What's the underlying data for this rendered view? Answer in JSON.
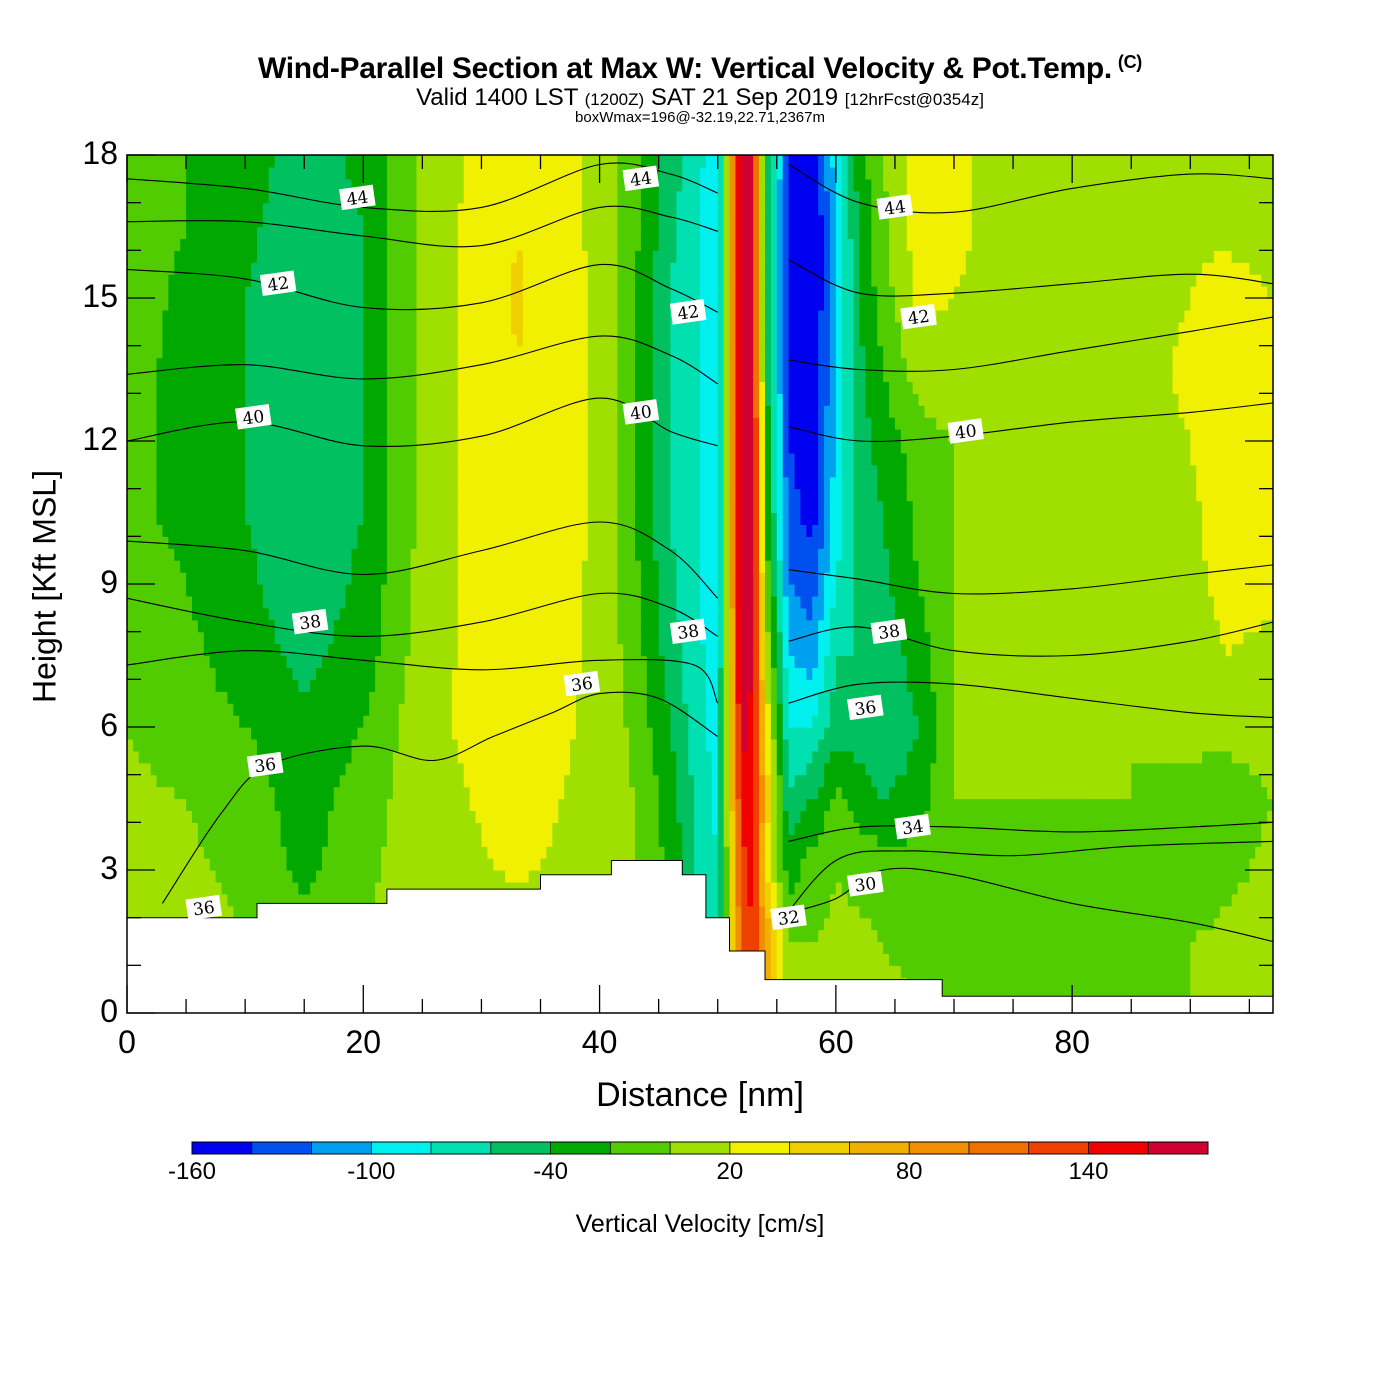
{
  "title": {
    "main": "Wind-Parallel Section at Max W: Vertical Velocity & Pot.Temp.",
    "copyright": "(C)",
    "valid_a": "Valid 1400 LST",
    "valid_utc": "(1200Z)",
    "valid_b": "SAT 21 Sep 2019",
    "forecast": "[12hrFcst@0354z]",
    "box_info": "boxWmax=196@-32.19,22.71,2367m"
  },
  "chart_data": {
    "type": "heatmap",
    "xlabel": "Distance [nm]",
    "ylabel": "Height [Kft MSL]",
    "xlim": [
      0,
      97
    ],
    "ylim": [
      0,
      18
    ],
    "xticks": [
      0,
      20,
      40,
      60,
      80
    ],
    "yticks": [
      0,
      3,
      6,
      9,
      12,
      15,
      18
    ],
    "colorbar": {
      "title": "Vertical Velocity [cm/s]",
      "levels": [
        -160,
        -140,
        -120,
        -100,
        -80,
        -60,
        -40,
        -20,
        0,
        20,
        40,
        60,
        80,
        100,
        120,
        140,
        160,
        180
      ],
      "colors": [
        "#0000f0",
        "#0050f0",
        "#00a0f0",
        "#00f0f0",
        "#00e0b0",
        "#00c060",
        "#00a800",
        "#50cc00",
        "#a0e000",
        "#f0f000",
        "#f0d000",
        "#f0b000",
        "#f09000",
        "#f07000",
        "#f04000",
        "#f00000",
        "#d00030"
      ],
      "tick_labels": [
        "-160",
        "-100",
        "-40",
        "20",
        "80",
        "140"
      ],
      "tick_values": [
        -160,
        -100,
        -40,
        20,
        80,
        140
      ]
    },
    "w_field": {
      "x": [
        0,
        5,
        10,
        15,
        20,
        25,
        30,
        33,
        36,
        40,
        43,
        46,
        48,
        50,
        52,
        53,
        54,
        56,
        58,
        60,
        62,
        64,
        67,
        70,
        75,
        80,
        85,
        90,
        93,
        97
      ],
      "z": [
        0,
        1.5,
        3,
        4.5,
        6,
        7.5,
        9,
        10.5,
        12,
        13.5,
        15,
        16.5,
        18
      ],
      "values": [
        [
          8,
          8,
          6,
          4,
          10,
          12,
          12,
          12,
          10,
          8,
          0,
          -20,
          -40,
          -70,
          100,
          120,
          60,
          10,
          8,
          6,
          6,
          4,
          2,
          0,
          0,
          -5,
          -5,
          0,
          5,
          8
        ],
        [
          8,
          8,
          0,
          -10,
          0,
          10,
          12,
          12,
          10,
          8,
          4,
          -20,
          -50,
          -80,
          120,
          140,
          80,
          0,
          0,
          4,
          4,
          0,
          -5,
          -10,
          -10,
          -5,
          -5,
          0,
          5,
          8
        ],
        [
          6,
          4,
          -5,
          -25,
          -5,
          12,
          18,
          22,
          18,
          6,
          2,
          -25,
          -60,
          -80,
          130,
          150,
          40,
          -30,
          -10,
          0,
          -5,
          -10,
          -10,
          -5,
          -5,
          -5,
          -10,
          -15,
          -5,
          5
        ],
        [
          4,
          0,
          -10,
          -30,
          -10,
          12,
          22,
          28,
          22,
          12,
          0,
          -30,
          -60,
          -85,
          150,
          160,
          60,
          -60,
          -40,
          -15,
          -30,
          -40,
          -30,
          0,
          0,
          0,
          0,
          -5,
          -10,
          0
        ],
        [
          0,
          -10,
          -20,
          -35,
          -20,
          14,
          26,
          30,
          26,
          14,
          -5,
          -40,
          -70,
          -90,
          170,
          150,
          40,
          -80,
          -80,
          -50,
          -50,
          -60,
          -40,
          0,
          0,
          0,
          0,
          5,
          5,
          10
        ],
        [
          -5,
          -15,
          -30,
          -45,
          -30,
          10,
          28,
          32,
          28,
          15,
          -10,
          -50,
          -70,
          -95,
          180,
          160,
          20,
          -100,
          -110,
          -60,
          -60,
          -55,
          -30,
          0,
          0,
          0,
          5,
          10,
          20,
          15
        ],
        [
          -10,
          -20,
          -35,
          -55,
          -35,
          8,
          28,
          34,
          28,
          16,
          -15,
          -55,
          -75,
          -100,
          190,
          170,
          0,
          -120,
          -130,
          -80,
          -55,
          -45,
          -20,
          0,
          0,
          0,
          5,
          15,
          25,
          25
        ],
        [
          -15,
          -25,
          -40,
          -55,
          -40,
          5,
          28,
          36,
          30,
          16,
          -20,
          -60,
          -75,
          -100,
          195,
          175,
          -20,
          -130,
          -150,
          -90,
          -50,
          -40,
          -15,
          0,
          0,
          0,
          8,
          15,
          30,
          30
        ],
        [
          -15,
          -25,
          -40,
          -55,
          -40,
          5,
          30,
          38,
          32,
          16,
          -20,
          -60,
          -75,
          -100,
          190,
          170,
          -20,
          -140,
          -155,
          -95,
          -50,
          -30,
          -10,
          0,
          0,
          5,
          10,
          20,
          35,
          35
        ],
        [
          -15,
          -25,
          -40,
          -60,
          -40,
          5,
          30,
          40,
          34,
          15,
          -20,
          -60,
          -75,
          -100,
          190,
          165,
          -30,
          -145,
          -160,
          -100,
          -45,
          -20,
          10,
          15,
          10,
          5,
          10,
          25,
          35,
          30
        ],
        [
          -10,
          -25,
          -40,
          -55,
          -40,
          5,
          30,
          42,
          34,
          15,
          -20,
          -60,
          -75,
          -100,
          190,
          160,
          -30,
          -145,
          -165,
          -100,
          -40,
          -10,
          25,
          20,
          10,
          5,
          10,
          20,
          30,
          20
        ],
        [
          -10,
          -20,
          -35,
          -55,
          -40,
          5,
          30,
          40,
          32,
          14,
          -15,
          -55,
          -75,
          -100,
          190,
          160,
          -30,
          -145,
          -165,
          -100,
          -35,
          -5,
          30,
          25,
          10,
          5,
          10,
          15,
          15,
          10
        ],
        [
          -10,
          -20,
          -30,
          -50,
          -35,
          5,
          25,
          35,
          30,
          12,
          -10,
          -50,
          -70,
          -95,
          185,
          155,
          -30,
          -140,
          -160,
          -90,
          -30,
          0,
          30,
          25,
          10,
          5,
          10,
          10,
          10,
          5
        ]
      ]
    },
    "isentropes": [
      {
        "label": "36",
        "points": [
          [
            3,
            2.3
          ],
          [
            8,
            4.2
          ],
          [
            12,
            5.2
          ],
          [
            20,
            5.6
          ],
          [
            26,
            5.3
          ],
          [
            31,
            5.8
          ],
          [
            36,
            6.3
          ],
          [
            40,
            6.7
          ],
          [
            45,
            6.6
          ],
          [
            50,
            5.8
          ]
        ]
      },
      {
        "label": "36",
        "points": [
          [
            0,
            7.3
          ],
          [
            10,
            7.6
          ],
          [
            20,
            7.4
          ],
          [
            30,
            7.2
          ],
          [
            40,
            7.4
          ],
          [
            48,
            7.3
          ],
          [
            50,
            6.5
          ]
        ]
      },
      {
        "label": "38",
        "points": [
          [
            0,
            8.7
          ],
          [
            10,
            8.2
          ],
          [
            20,
            7.9
          ],
          [
            30,
            8.2
          ],
          [
            40,
            8.8
          ],
          [
            46,
            8.5
          ],
          [
            50,
            7.9
          ]
        ]
      },
      {
        "label": "38",
        "points": [
          [
            0,
            9.9
          ],
          [
            10,
            9.7
          ],
          [
            20,
            9.2
          ],
          [
            30,
            9.7
          ],
          [
            40,
            10.3
          ],
          [
            46,
            9.7
          ],
          [
            50,
            8.7
          ]
        ]
      },
      {
        "label": "40",
        "points": [
          [
            0,
            12.0
          ],
          [
            10,
            12.4
          ],
          [
            20,
            11.9
          ],
          [
            30,
            12.1
          ],
          [
            40,
            12.9
          ],
          [
            46,
            12.2
          ],
          [
            50,
            11.9
          ]
        ]
      },
      {
        "label": "40",
        "points": [
          [
            0,
            13.4
          ],
          [
            10,
            13.6
          ],
          [
            20,
            13.3
          ],
          [
            30,
            13.6
          ],
          [
            40,
            14.2
          ],
          [
            46,
            13.8
          ],
          [
            50,
            13.2
          ]
        ]
      },
      {
        "label": "42",
        "points": [
          [
            0,
            15.6
          ],
          [
            10,
            15.4
          ],
          [
            20,
            14.8
          ],
          [
            30,
            14.9
          ],
          [
            40,
            15.7
          ],
          [
            46,
            15.2
          ],
          [
            50,
            14.7
          ]
        ]
      },
      {
        "label": "42",
        "points": [
          [
            0,
            16.6
          ],
          [
            10,
            16.6
          ],
          [
            20,
            16.3
          ],
          [
            30,
            16.1
          ],
          [
            40,
            16.9
          ],
          [
            46,
            16.7
          ],
          [
            50,
            16.4
          ]
        ]
      },
      {
        "label": "44",
        "points": [
          [
            0,
            17.5
          ],
          [
            10,
            17.3
          ],
          [
            20,
            16.9
          ],
          [
            30,
            16.9
          ],
          [
            40,
            17.8
          ],
          [
            46,
            17.6
          ],
          [
            50,
            17.2
          ]
        ]
      }
    ],
    "isentropes_right": [
      {
        "label": "30",
        "points": [
          [
            56,
            2.1
          ],
          [
            60,
            2.4
          ],
          [
            64,
            3.0
          ],
          [
            70,
            2.9
          ],
          [
            80,
            2.3
          ],
          [
            90,
            1.9
          ],
          [
            97,
            1.5
          ]
        ]
      },
      {
        "label": "32",
        "points": [
          [
            55,
            1.8
          ],
          [
            60,
            3.2
          ],
          [
            66,
            3.4
          ],
          [
            75,
            3.3
          ],
          [
            85,
            3.5
          ],
          [
            97,
            3.6
          ]
        ]
      },
      {
        "label": "34",
        "points": [
          [
            56,
            3.6
          ],
          [
            62,
            3.9
          ],
          [
            70,
            3.9
          ],
          [
            80,
            3.8
          ],
          [
            90,
            3.9
          ],
          [
            97,
            4.0
          ]
        ]
      },
      {
        "label": "36",
        "points": [
          [
            56,
            6.5
          ],
          [
            62,
            6.9
          ],
          [
            70,
            6.9
          ],
          [
            80,
            6.6
          ],
          [
            90,
            6.3
          ],
          [
            97,
            6.2
          ]
        ]
      },
      {
        "label": "38",
        "points": [
          [
            56,
            7.8
          ],
          [
            62,
            8.1
          ],
          [
            70,
            7.6
          ],
          [
            80,
            7.5
          ],
          [
            90,
            7.8
          ],
          [
            97,
            8.2
          ]
        ]
      },
      {
        "label": "38",
        "points": [
          [
            56,
            9.3
          ],
          [
            62,
            9.1
          ],
          [
            70,
            8.8
          ],
          [
            80,
            8.9
          ],
          [
            90,
            9.2
          ],
          [
            97,
            9.4
          ]
        ]
      },
      {
        "label": "40",
        "points": [
          [
            56,
            12.3
          ],
          [
            62,
            12.0
          ],
          [
            70,
            12.1
          ],
          [
            80,
            12.4
          ],
          [
            90,
            12.6
          ],
          [
            97,
            12.8
          ]
        ]
      },
      {
        "label": "40",
        "points": [
          [
            56,
            13.7
          ],
          [
            62,
            13.5
          ],
          [
            70,
            13.5
          ],
          [
            80,
            13.9
          ],
          [
            90,
            14.3
          ],
          [
            97,
            14.6
          ]
        ]
      },
      {
        "label": "42",
        "points": [
          [
            56,
            15.8
          ],
          [
            62,
            15.1
          ],
          [
            70,
            15.1
          ],
          [
            80,
            15.3
          ],
          [
            90,
            15.5
          ],
          [
            97,
            15.3
          ]
        ]
      },
      {
        "label": "44",
        "points": [
          [
            56,
            17.8
          ],
          [
            62,
            17.0
          ],
          [
            70,
            16.8
          ],
          [
            80,
            17.3
          ],
          [
            90,
            17.6
          ],
          [
            97,
            17.5
          ]
        ]
      }
    ],
    "contour_labels": [
      {
        "text": "44",
        "x": 19.5,
        "z": 17.1
      },
      {
        "text": "44",
        "x": 43.5,
        "z": 17.5
      },
      {
        "text": "44",
        "x": 65.0,
        "z": 16.9
      },
      {
        "text": "42",
        "x": 12.8,
        "z": 15.3
      },
      {
        "text": "42",
        "x": 47.5,
        "z": 14.7
      },
      {
        "text": "42",
        "x": 67.0,
        "z": 14.6
      },
      {
        "text": "40",
        "x": 10.7,
        "z": 12.5
      },
      {
        "text": "40",
        "x": 43.5,
        "z": 12.6
      },
      {
        "text": "40",
        "x": 71.0,
        "z": 12.2
      },
      {
        "text": "38",
        "x": 15.5,
        "z": 8.2
      },
      {
        "text": "38",
        "x": 47.5,
        "z": 8.0
      },
      {
        "text": "38",
        "x": 64.5,
        "z": 8.0
      },
      {
        "text": "36",
        "x": 38.5,
        "z": 6.9
      },
      {
        "text": "36",
        "x": 62.5,
        "z": 6.4
      },
      {
        "text": "36",
        "x": 11.7,
        "z": 5.2
      },
      {
        "text": "36",
        "x": 6.5,
        "z": 2.2
      },
      {
        "text": "34",
        "x": 66.5,
        "z": 3.9
      },
      {
        "text": "32",
        "x": 56.0,
        "z": 2.0
      },
      {
        "text": "30",
        "x": 62.5,
        "z": 2.7
      }
    ],
    "terrain": [
      [
        0,
        2.0
      ],
      [
        11,
        2.0
      ],
      [
        11,
        2.3
      ],
      [
        22,
        2.3
      ],
      [
        22,
        2.6
      ],
      [
        35,
        2.6
      ],
      [
        35,
        2.9
      ],
      [
        41,
        2.9
      ],
      [
        41,
        3.2
      ],
      [
        47,
        3.2
      ],
      [
        47,
        2.9
      ],
      [
        49,
        2.9
      ],
      [
        49,
        2.0
      ],
      [
        51,
        2.0
      ],
      [
        51,
        1.3
      ],
      [
        54,
        1.3
      ],
      [
        54,
        0.7
      ],
      [
        69,
        0.7
      ],
      [
        69,
        0.35
      ],
      [
        97,
        0.35
      ]
    ]
  }
}
